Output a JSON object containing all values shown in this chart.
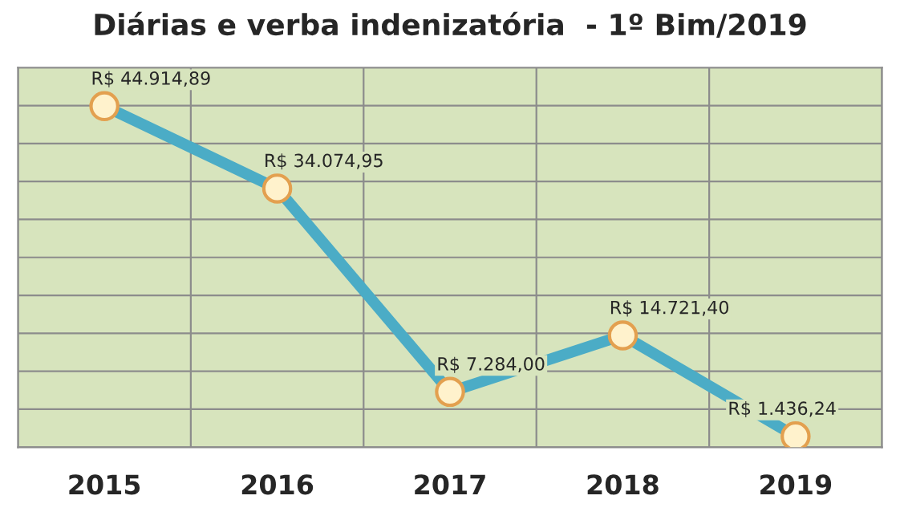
{
  "chart_data": {
    "type": "line",
    "title": "Diárias e verba indenizatória  - 1º Bim/2019",
    "categories": [
      "2015",
      "2016",
      "2017",
      "2018",
      "2019"
    ],
    "series": [
      {
        "color": "#4bacc6",
        "values": [
          44914.89,
          34074.95,
          7284.0,
          14721.4,
          1436.24
        ],
        "value_labels": [
          "R$ 44.914,89",
          "R$ 34.074,95",
          "R$ 7.284,00",
          "R$ 14.721,40",
          "R$ 1.436,24"
        ]
      }
    ],
    "ylim": [
      0,
      50000
    ],
    "yticks": [
      {
        "value": 0,
        "label": null
      },
      {
        "value": 5000,
        "label": null
      },
      {
        "value": 10000,
        "label": null
      },
      {
        "value": 15000,
        "label": null
      },
      {
        "value": 20000,
        "label": null
      },
      {
        "value": 25000,
        "label": null
      },
      {
        "value": 30000,
        "label": null
      },
      {
        "value": 35000,
        "label": null
      },
      {
        "value": 40000,
        "label": null
      },
      {
        "value": 45000,
        "label": null
      },
      {
        "value": 50000,
        "label": null
      }
    ],
    "grid": true,
    "marker": "circle",
    "line_style": "solid",
    "legend": false
  }
}
